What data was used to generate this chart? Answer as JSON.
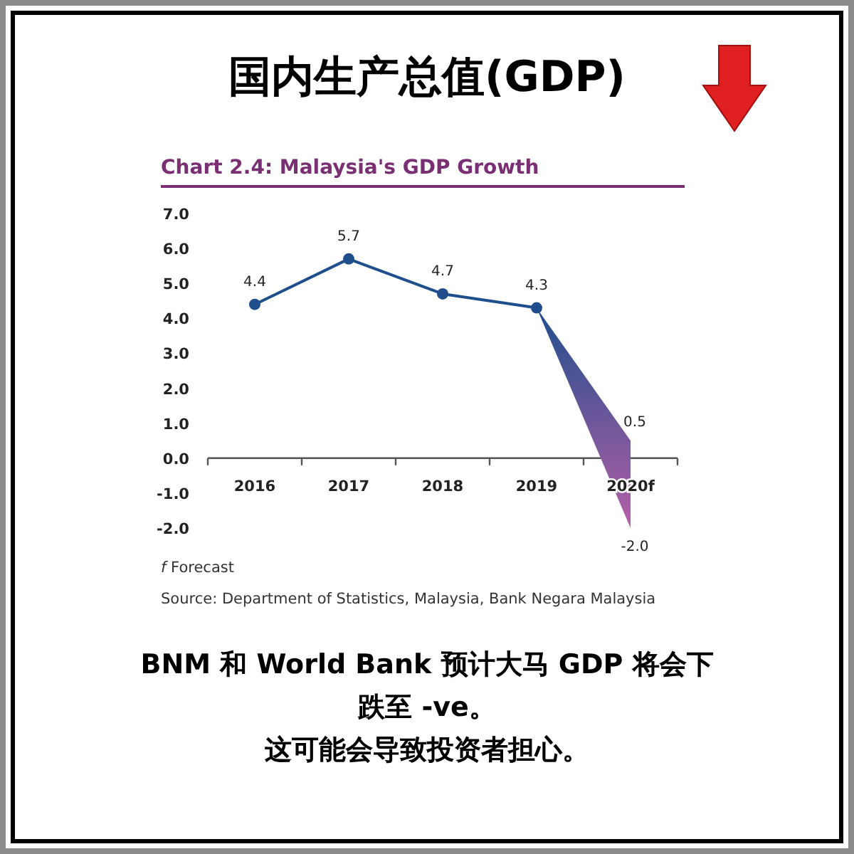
{
  "chart_data": {
    "type": "line",
    "title": "国内生产总值(GDP)",
    "subtitle": "Chart 2.4: Malaysia's GDP Growth",
    "categories": [
      "2016",
      "2017",
      "2018",
      "2019",
      "2020f"
    ],
    "series": [
      {
        "color": "#1f4e8c",
        "values": [
          4.4,
          5.7,
          4.7,
          4.3,
          null
        ],
        "lower": [
          null,
          null,
          null,
          4.3,
          -2.0
        ],
        "upper": [
          null,
          null,
          null,
          4.3,
          0.5
        ]
      }
    ],
    "ylim": [
      -2.0,
      7.0
    ],
    "yticks": [
      {
        "value": -2,
        "label": "-2.0"
      },
      {
        "value": -1,
        "label": "-1.0"
      },
      {
        "value": 0,
        "label": "0.0"
      },
      {
        "value": 1,
        "label": "1.0"
      },
      {
        "value": 2,
        "label": "2.0"
      },
      {
        "value": 3,
        "label": "3.0"
      },
      {
        "value": 4,
        "label": "4.0"
      },
      {
        "value": 5,
        "label": "5.0"
      },
      {
        "value": 6,
        "label": "6.0"
      },
      {
        "value": 7,
        "label": "7.0"
      }
    ],
    "marker": "circle",
    "data_labels": true,
    "grid": false,
    "annotations": [
      {
        "text": "0.5",
        "x": "2020f",
        "y": 0.5
      },
      {
        "text": "-2.0",
        "x": "2020f",
        "y": -2.0
      },
      "*f*  Forecast",
      "Source: Department of Statistics, Malaysia, Bank Negara Malaysia",
      "BNM 和 World Bank 预计大马 GDP 将会下跌至 -ve。",
      "这可能会导致投资者担心。"
    ]
  }
}
